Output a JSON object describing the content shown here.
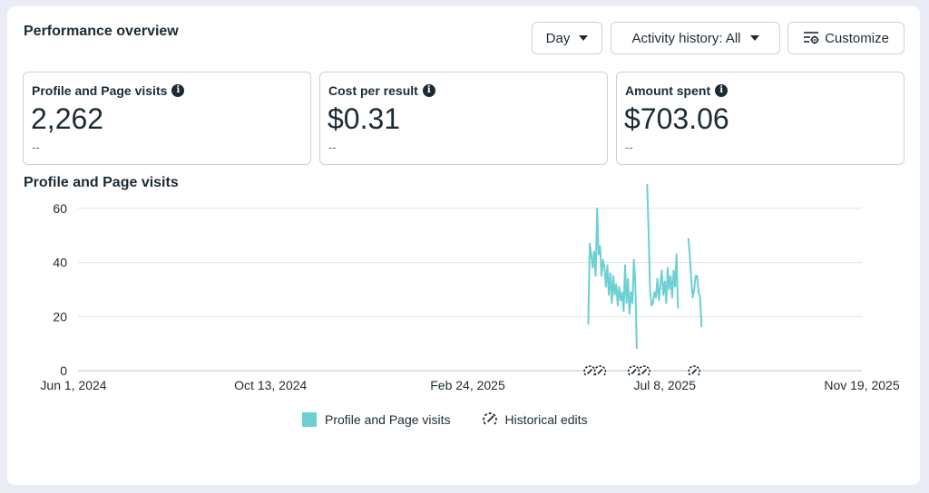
{
  "header": {
    "title": "Performance overview",
    "day_label": "Day",
    "activity_label": "Activity history: All",
    "customize_label": "Customize"
  },
  "metrics": [
    {
      "label": "Profile and Page visits",
      "value": "2,262",
      "sub": "--"
    },
    {
      "label": "Cost per result",
      "value": "$0.31",
      "sub": "--"
    },
    {
      "label": "Amount spent",
      "value": "$703.06",
      "sub": "--"
    }
  ],
  "chart_title": "Profile and Page visits",
  "legend": {
    "series_label": "Profile and Page visits",
    "edits_label": "Historical edits"
  },
  "colors": {
    "series": "#6ccfd2",
    "grid": "#dfe1e5",
    "text": "#1c2b33"
  },
  "chart_data": {
    "type": "line",
    "x_axis": {
      "type": "date",
      "ticks": [
        "Jun 1, 2024",
        "Oct 13, 2024",
        "Feb 24, 2025",
        "Jul 8, 2025",
        "Nov 19, 2025"
      ],
      "range": [
        "Jun 1, 2024",
        "Nov 19, 2025"
      ]
    },
    "y_axis": {
      "ticks": [
        0,
        20,
        40,
        60
      ],
      "range": [
        0,
        70
      ]
    },
    "grid": true,
    "legend_position": "bottom-center",
    "series": [
      {
        "name": "Profile and Page visits",
        "segments": [
          [
            [
              "2025-05-17",
              17
            ],
            [
              "2025-05-18",
              47
            ],
            [
              "2025-05-19",
              43
            ],
            [
              "2025-05-20",
              38
            ],
            [
              "2025-05-21",
              44
            ],
            [
              "2025-05-22",
              35
            ],
            [
              "2025-05-23",
              60
            ],
            [
              "2025-05-24",
              43
            ],
            [
              "2025-05-25",
              46
            ],
            [
              "2025-05-26",
              35
            ],
            [
              "2025-05-27",
              41
            ],
            [
              "2025-05-28",
              38
            ],
            [
              "2025-05-29",
              31
            ],
            [
              "2025-05-30",
              39
            ],
            [
              "2025-05-31",
              28
            ],
            [
              "2025-06-01",
              36
            ],
            [
              "2025-06-02",
              25
            ],
            [
              "2025-06-03",
              35
            ],
            [
              "2025-06-04",
              28
            ],
            [
              "2025-06-05",
              32
            ],
            [
              "2025-06-06",
              24
            ],
            [
              "2025-06-07",
              31
            ],
            [
              "2025-06-08",
              26
            ],
            [
              "2025-06-09",
              29
            ],
            [
              "2025-06-10",
              22
            ],
            [
              "2025-06-11",
              39
            ],
            [
              "2025-06-12",
              25
            ],
            [
              "2025-06-13",
              34
            ],
            [
              "2025-06-14",
              21
            ],
            [
              "2025-06-15",
              29
            ],
            [
              "2025-06-16",
              25
            ],
            [
              "2025-06-17",
              41
            ],
            [
              "2025-06-18",
              32
            ],
            [
              "2025-06-19",
              8
            ]
          ],
          [
            [
              "2025-06-26",
              69
            ],
            [
              "2025-06-27",
              52
            ],
            [
              "2025-06-28",
              30
            ],
            [
              "2025-06-29",
              24
            ],
            [
              "2025-06-30",
              25
            ],
            [
              "2025-07-01",
              29
            ],
            [
              "2025-07-02",
              27
            ],
            [
              "2025-07-03",
              34
            ],
            [
              "2025-07-04",
              26
            ],
            [
              "2025-07-05",
              32
            ],
            [
              "2025-07-06",
              37
            ],
            [
              "2025-07-07",
              28
            ],
            [
              "2025-07-08",
              33
            ],
            [
              "2025-07-09",
              25
            ],
            [
              "2025-07-10",
              38
            ],
            [
              "2025-07-11",
              30
            ],
            [
              "2025-07-12",
              35
            ],
            [
              "2025-07-13",
              27
            ],
            [
              "2025-07-14",
              37
            ],
            [
              "2025-07-15",
              31
            ],
            [
              "2025-07-16",
              43
            ],
            [
              "2025-07-17",
              23
            ]
          ],
          [
            [
              "2025-07-24",
              49
            ],
            [
              "2025-07-25",
              43
            ],
            [
              "2025-07-26",
              34
            ],
            [
              "2025-07-27",
              27
            ],
            [
              "2025-07-28",
              30
            ],
            [
              "2025-07-29",
              35
            ],
            [
              "2025-07-30",
              35
            ],
            [
              "2025-07-31",
              29
            ],
            [
              "2025-08-01",
              27
            ],
            [
              "2025-08-02",
              16
            ]
          ]
        ]
      }
    ],
    "historical_edits": [
      "2025-05-18",
      "2025-05-25",
      "2025-06-17",
      "2025-06-24",
      "2025-07-28"
    ]
  }
}
